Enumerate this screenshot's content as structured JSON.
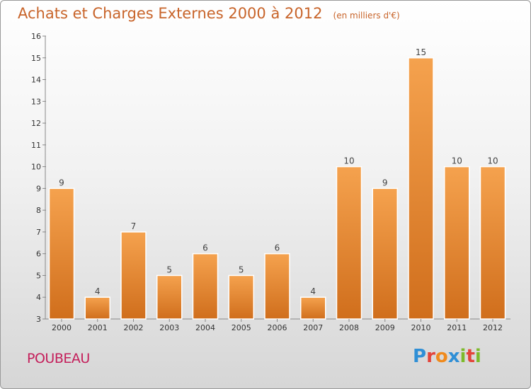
{
  "chart_data": {
    "type": "bar",
    "title": "Achats et Charges Externes 2000 à 2012",
    "subtitle": "(en milliers d'€)",
    "categories": [
      "2000",
      "2001",
      "2002",
      "2003",
      "2004",
      "2005",
      "2006",
      "2007",
      "2008",
      "2009",
      "2010",
      "2011",
      "2012"
    ],
    "values": [
      9,
      4,
      7,
      5,
      6,
      5,
      6,
      4,
      10,
      9,
      15,
      10,
      10
    ],
    "ylim": [
      3,
      16
    ],
    "yticks": [
      3,
      4,
      5,
      6,
      7,
      8,
      9,
      10,
      11,
      12,
      13,
      14,
      15,
      16
    ],
    "xlabel": "",
    "ylabel": "",
    "grid": false,
    "bar_color_top": "#f5a24e",
    "bar_color_bottom": "#d06e1c"
  },
  "footer": {
    "city": "POUBEAU",
    "logo_letters": [
      "P",
      "r",
      "o",
      "x",
      "i",
      "t",
      "i"
    ],
    "logo_colors": [
      "#2f8fd6",
      "#e3443a",
      "#f08a1c",
      "#2f8fd6",
      "#7dba2b",
      "#e3443a",
      "#7dba2b"
    ]
  }
}
